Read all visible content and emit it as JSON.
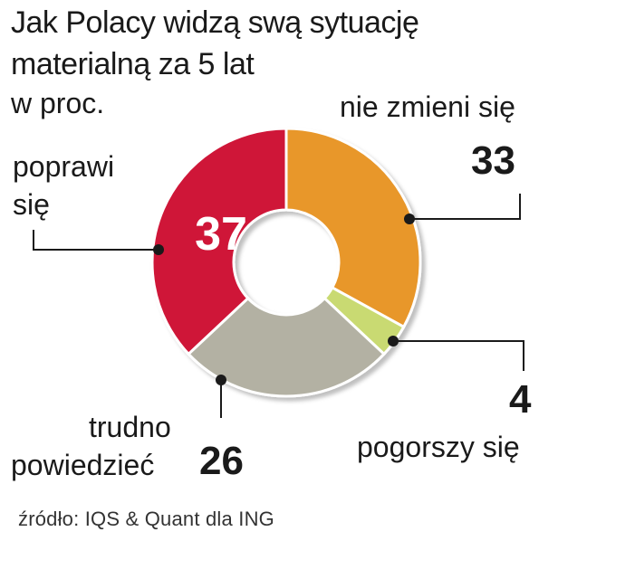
{
  "title_lines": [
    "Jak Polacy widzą swą sytuację",
    "materialną za 5 lat"
  ],
  "unit": "w proc.",
  "source": "źródło: IQS & Quant dla ING",
  "chart_data": {
    "type": "pie",
    "donut": true,
    "title": "Jak Polacy widzą swą sytuację materialną za 5 lat",
    "unit": "w proc.",
    "slices": [
      {
        "label": "nie zmieni się",
        "value": 33,
        "color": "#E8972A"
      },
      {
        "label": "pogorszy się",
        "value": 4,
        "color": "#C9DA72"
      },
      {
        "label": "trudno powiedzieć",
        "value": 26,
        "color": "#B3B1A3"
      },
      {
        "label": "poprawi się",
        "value": 37,
        "color": "#CF1738"
      }
    ]
  },
  "labels": {
    "nie_zmieni": {
      "text": "nie zmieni się",
      "value": "33"
    },
    "pogorszy": {
      "text": "pogorszy się",
      "value": "4"
    },
    "trudno": {
      "line1": "trudno",
      "line2": "powiedzieć",
      "value": "26"
    },
    "poprawi": {
      "line1": "poprawi",
      "line2": "się",
      "value": "37"
    }
  }
}
